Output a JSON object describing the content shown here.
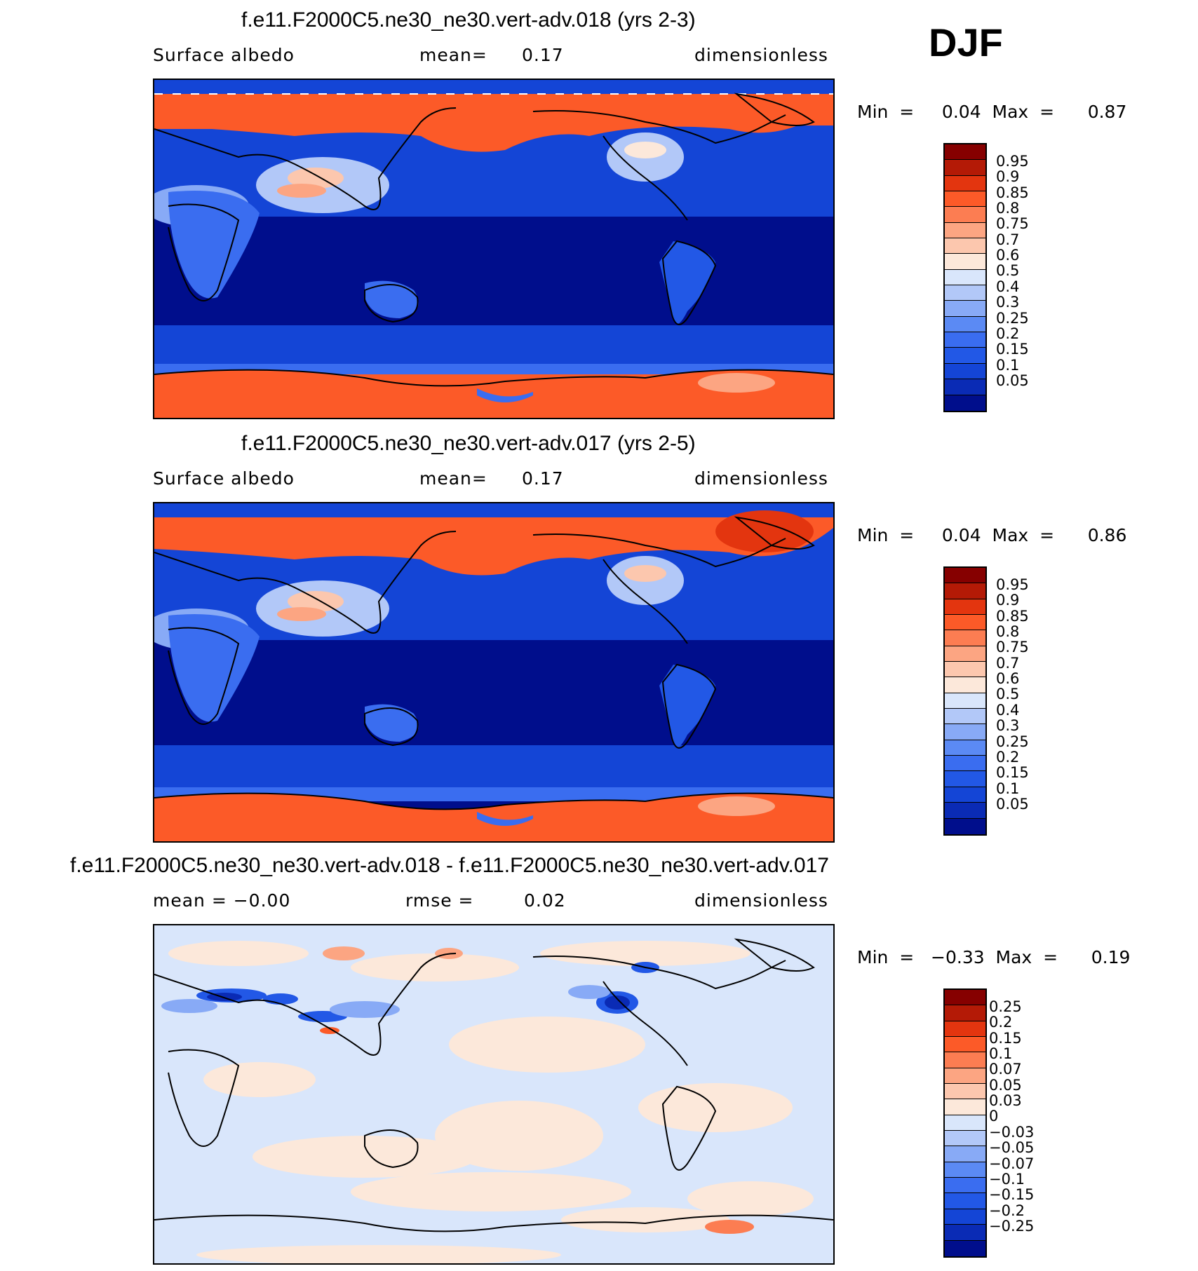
{
  "season": "DJF",
  "palette_full": [
    "#000e8c",
    "#0a2bb5",
    "#1445d6",
    "#2258e6",
    "#3a6df0",
    "#5b8af4",
    "#88aaf6",
    "#b2c8f8",
    "#d9e6fb",
    "#fce8da",
    "#fcc7ae",
    "#fca582",
    "#fc7d52",
    "#fc5a28",
    "#e3350f",
    "#b41a06",
    "#860000"
  ],
  "palette_diff": [
    "#000e8c",
    "#0a2bb5",
    "#1445d6",
    "#2258e6",
    "#3a6df0",
    "#5b8af4",
    "#88aaf6",
    "#b2c8f8",
    "#d9e6fb",
    "#fce8da",
    "#fcc7ae",
    "#fca582",
    "#fc7d52",
    "#fc5a28",
    "#e3350f",
    "#b41a06",
    "#860000"
  ],
  "panels": [
    {
      "title": "f.e11.F2000C5.ne30_ne30.vert-adv.018 (yrs 2-3)",
      "left_label": "Surface  albedo",
      "mid_label": "mean=",
      "mid_value": "0.17",
      "right_label": "dimensionless",
      "minmax": "Min  =     0.04  Max  =      0.87",
      "levels": [
        "0.95",
        "0.9",
        "0.85",
        "0.8",
        "0.75",
        "0.7",
        "0.6",
        "0.5",
        "0.4",
        "0.3",
        "0.25",
        "0.2",
        "0.15",
        "0.1",
        "0.05"
      ]
    },
    {
      "title": "f.e11.F2000C5.ne30_ne30.vert-adv.017 (yrs 2-5)",
      "left_label": "Surface  albedo",
      "mid_label": "mean=",
      "mid_value": "0.17",
      "right_label": "dimensionless",
      "minmax": "Min  =     0.04  Max  =      0.86",
      "levels": [
        "0.95",
        "0.9",
        "0.85",
        "0.8",
        "0.75",
        "0.7",
        "0.6",
        "0.5",
        "0.4",
        "0.3",
        "0.25",
        "0.2",
        "0.15",
        "0.1",
        "0.05"
      ]
    },
    {
      "title": "f.e11.F2000C5.ne30_ne30.vert-adv.018 - f.e11.F2000C5.ne30_ne30.vert-adv.017",
      "left_label": "mean  =   −0.00",
      "mid_label": "rmse  =",
      "mid_value": "0.02",
      "right_label": "dimensionless",
      "minmax": "Min  =   −0.33  Max  =      0.19",
      "levels": [
        "0.25",
        "0.2",
        "0.15",
        "0.1",
        "0.07",
        "0.05",
        "0.03",
        "0",
        "−0.03",
        "−0.05",
        "−0.07",
        "−0.1",
        "−0.15",
        "−0.2",
        "−0.25"
      ]
    }
  ]
}
